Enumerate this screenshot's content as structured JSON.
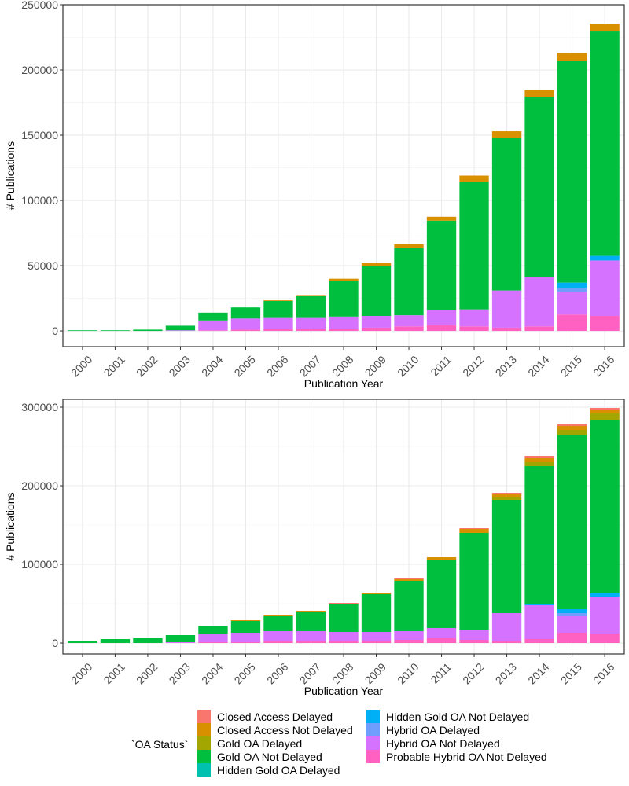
{
  "legend": {
    "title": "`OA Status`",
    "position": "bottom",
    "entries": [
      {
        "label": "Closed Access Delayed",
        "color": "#F8766D"
      },
      {
        "label": "Closed Access Not Delayed",
        "color": "#D89000"
      },
      {
        "label": "Gold OA Delayed",
        "color": "#A3A500"
      },
      {
        "label": "Gold OA Not Delayed",
        "color": "#00BF3F"
      },
      {
        "label": "Hidden Gold OA Delayed",
        "color": "#00C0AF"
      },
      {
        "label": "Hidden Gold OA Not Delayed",
        "color": "#00B0F6"
      },
      {
        "label": "Hybrid OA Delayed",
        "color": "#6F9EFF"
      },
      {
        "label": "Hybrid OA Not Delayed",
        "color": "#D572FF"
      },
      {
        "label": "Probable Hybrid OA Not Delayed",
        "color": "#FF61C3"
      }
    ]
  },
  "chart_data": [
    {
      "type": "bar",
      "stacked": true,
      "grid": true,
      "xlabel": "Publication Year",
      "ylabel": "# Publications",
      "ylim": [
        0,
        250000
      ],
      "yticks": [
        0,
        50000,
        100000,
        150000,
        200000,
        250000
      ],
      "categories": [
        "2000",
        "2001",
        "2002",
        "2003",
        "2004",
        "2005",
        "2006",
        "2007",
        "2008",
        "2009",
        "2010",
        "2011",
        "2012",
        "2013",
        "2014",
        "2015",
        "2016"
      ],
      "series": [
        {
          "name": "Probable Hybrid OA Not Delayed",
          "values": [
            0,
            0,
            0,
            0,
            500,
            1000,
            1500,
            1500,
            1500,
            2500,
            3500,
            4500,
            3500,
            2500,
            3500,
            12500,
            11500
          ]
        },
        {
          "name": "Hybrid OA Not Delayed",
          "values": [
            0,
            0,
            0,
            500,
            7500,
            8500,
            9000,
            9000,
            9500,
            9000,
            8500,
            11500,
            13000,
            28500,
            37500,
            17500,
            42500
          ]
        },
        {
          "name": "Hybrid OA Delayed",
          "values": [
            0,
            0,
            0,
            0,
            0,
            0,
            0,
            0,
            0,
            0,
            0,
            0,
            0,
            0,
            0,
            3000,
            0
          ]
        },
        {
          "name": "Hidden Gold OA Not Delayed",
          "values": [
            0,
            0,
            0,
            0,
            0,
            0,
            0,
            0,
            0,
            0,
            0,
            0,
            0,
            0,
            500,
            4000,
            3500
          ]
        },
        {
          "name": "Hidden Gold OA Delayed",
          "values": [
            0,
            0,
            0,
            0,
            0,
            0,
            0,
            0,
            0,
            0,
            0,
            0,
            0,
            0,
            0,
            0,
            0
          ]
        },
        {
          "name": "Gold OA Not Delayed",
          "values": [
            500,
            500,
            1000,
            3500,
            6000,
            8500,
            12500,
            16500,
            27500,
            38500,
            51500,
            68500,
            98000,
            117000,
            138000,
            170000,
            172000
          ]
        },
        {
          "name": "Gold OA Delayed",
          "values": [
            0,
            0,
            0,
            0,
            0,
            0,
            0,
            0,
            0,
            0,
            0,
            0,
            0,
            0,
            0,
            0,
            0
          ]
        },
        {
          "name": "Closed Access Not Delayed",
          "values": [
            0,
            0,
            0,
            0,
            0,
            0,
            500,
            500,
            1500,
            2000,
            3000,
            3000,
            4500,
            5000,
            5000,
            6000,
            6000
          ]
        },
        {
          "name": "Closed Access Delayed",
          "values": [
            0,
            0,
            0,
            0,
            0,
            0,
            0,
            0,
            0,
            0,
            0,
            0,
            0,
            0,
            0,
            0,
            0
          ]
        }
      ]
    },
    {
      "type": "bar",
      "stacked": true,
      "grid": true,
      "xlabel": "Publication Year",
      "ylabel": "# Publications",
      "ylim": [
        0,
        300000
      ],
      "yticks": [
        0,
        100000,
        200000,
        300000
      ],
      "categories": [
        "2000",
        "2001",
        "2002",
        "2003",
        "2004",
        "2005",
        "2006",
        "2007",
        "2008",
        "2009",
        "2010",
        "2011",
        "2012",
        "2013",
        "2014",
        "2015",
        "2016"
      ],
      "series": [
        {
          "name": "Probable Hybrid OA Not Delayed",
          "values": [
            0,
            0,
            0,
            0,
            1000,
            1000,
            2000,
            2000,
            2000,
            3000,
            4000,
            6000,
            4000,
            3000,
            5000,
            13000,
            12000
          ]
        },
        {
          "name": "Hybrid OA Not Delayed",
          "values": [
            0,
            0,
            0,
            1000,
            11000,
            12000,
            13000,
            13000,
            12000,
            11000,
            11000,
            13000,
            13000,
            35000,
            43000,
            21000,
            47000
          ]
        },
        {
          "name": "Hybrid OA Delayed",
          "values": [
            0,
            0,
            0,
            0,
            0,
            0,
            0,
            0,
            0,
            0,
            0,
            0,
            0,
            0,
            0,
            4000,
            0
          ]
        },
        {
          "name": "Hidden Gold OA Not Delayed",
          "values": [
            0,
            0,
            0,
            0,
            0,
            0,
            0,
            0,
            0,
            0,
            0,
            0,
            0,
            0,
            1000,
            5000,
            4000
          ]
        },
        {
          "name": "Hidden Gold OA Delayed",
          "values": [
            0,
            0,
            0,
            0,
            0,
            0,
            0,
            0,
            0,
            0,
            0,
            0,
            0,
            0,
            0,
            0,
            0
          ]
        },
        {
          "name": "Gold OA Not Delayed",
          "values": [
            2000,
            5000,
            6000,
            9000,
            10000,
            15000,
            19000,
            25000,
            35000,
            48000,
            64000,
            87000,
            123000,
            144000,
            176000,
            221000,
            221000
          ]
        },
        {
          "name": "Gold OA Delayed",
          "values": [
            0,
            0,
            0,
            0,
            0,
            0,
            0,
            0,
            0,
            0,
            0,
            0,
            0,
            4000,
            5000,
            7000,
            8000
          ]
        },
        {
          "name": "Closed Access Not Delayed",
          "values": [
            0,
            0,
            0,
            0,
            0,
            1000,
            1000,
            1000,
            1000,
            1000,
            2000,
            3000,
            5000,
            3000,
            5000,
            5000,
            5000
          ]
        },
        {
          "name": "Closed Access Delayed",
          "values": [
            0,
            0,
            0,
            0,
            0,
            0,
            0,
            0,
            1000,
            1000,
            1000,
            0,
            1000,
            2000,
            3000,
            2000,
            2000
          ]
        }
      ]
    }
  ]
}
